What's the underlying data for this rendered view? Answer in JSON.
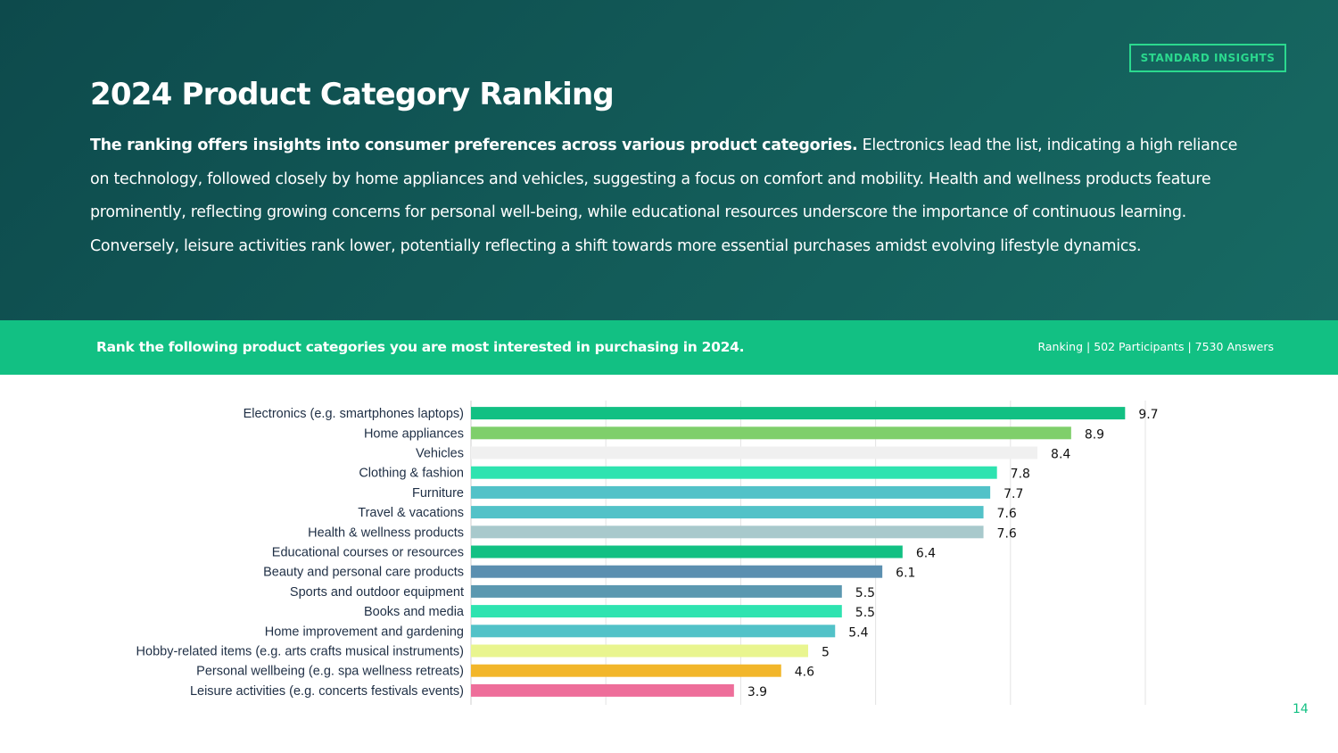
{
  "badge": "STANDARD INSIGHTS",
  "title": "2024 Product Category Ranking",
  "intro": {
    "lead": "The ranking offers insights into consumer preferences across various product categories.",
    "body": " Electronics lead the list, indicating a high reliance on technology, followed closely by home appliances and vehicles, suggesting a focus on comfort and mobility. Health and wellness products feature prominently, reflecting growing concerns for personal well-being, while educational resources underscore the importance of continuous learning. Conversely, leisure activities rank lower, potentially reflecting a shift towards more essential purchases amidst evolving lifestyle dynamics."
  },
  "question": "Rank the following product categories you are most interested in purchasing in 2024.",
  "meta": {
    "type": "Ranking",
    "participants": "| 502 Participants",
    "answers": "| 7530 Answers"
  },
  "page_number": "14",
  "chart_data": {
    "type": "bar",
    "orientation": "horizontal",
    "categories": [
      "Electronics (e.g. smartphones laptops)",
      "Home appliances",
      "Vehicles",
      "Clothing & fashion",
      "Furniture",
      "Travel & vacations",
      "Health & wellness products",
      "Educational courses or resources",
      "Beauty and personal care products",
      "Sports and outdoor equipment",
      "Books and media",
      "Home improvement and gardening",
      "Hobby-related items (e.g. arts crafts musical instruments)",
      "Personal wellbeing (e.g. spa wellness retreats)",
      "Leisure activities (e.g. concerts festivals events)"
    ],
    "values": [
      9.7,
      8.9,
      8.4,
      7.8,
      7.7,
      7.6,
      7.6,
      6.4,
      6.1,
      5.5,
      5.5,
      5.4,
      5,
      4.6,
      3.9
    ],
    "colors": [
      "#12c083",
      "#7fcf6b",
      "#f0f0f0",
      "#2ee3b0",
      "#52c2c8",
      "#52c2c8",
      "#a8c9cc",
      "#12c083",
      "#5b8fb0",
      "#5b98b0",
      "#2ee3b0",
      "#52c2c8",
      "#e9f58f",
      "#f2b62a",
      "#ee6e9a"
    ],
    "xlim": [
      0,
      10
    ],
    "grid": true,
    "data_labels": true
  }
}
